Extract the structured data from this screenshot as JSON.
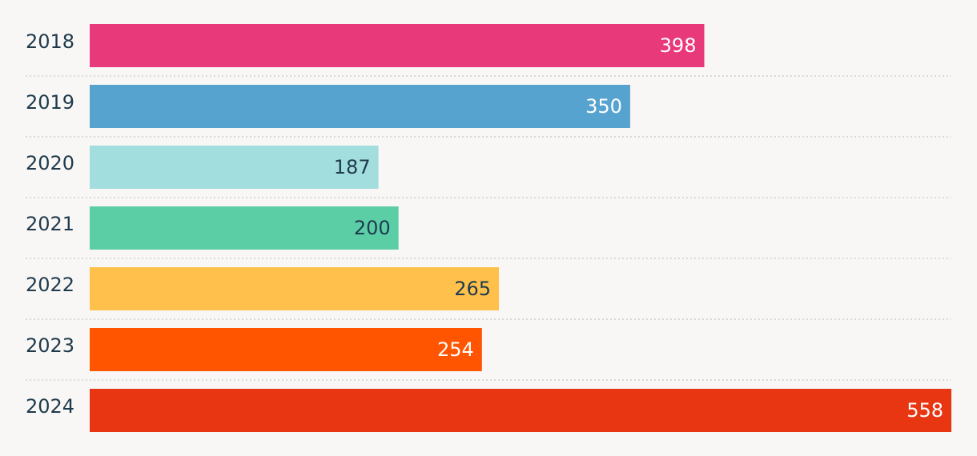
{
  "chart_data": {
    "type": "bar",
    "orientation": "horizontal",
    "categories": [
      "2018",
      "2019",
      "2020",
      "2021",
      "2022",
      "2023",
      "2024"
    ],
    "values": [
      398,
      350,
      187,
      200,
      265,
      254,
      558
    ],
    "colors": [
      "#e8397a",
      "#57a3cf",
      "#a2dedd",
      "#5ccea6",
      "#ffc14b",
      "#ff5500",
      "#e83613"
    ],
    "label_colors": [
      "#ffffff",
      "#ffffff",
      "#1f3a4d",
      "#1f3a4d",
      "#1f3a4d",
      "#ffffff",
      "#ffffff"
    ],
    "title": "",
    "xlabel": "",
    "ylabel": "",
    "xlim": [
      0,
      558
    ],
    "grid": false,
    "legend": "none"
  }
}
